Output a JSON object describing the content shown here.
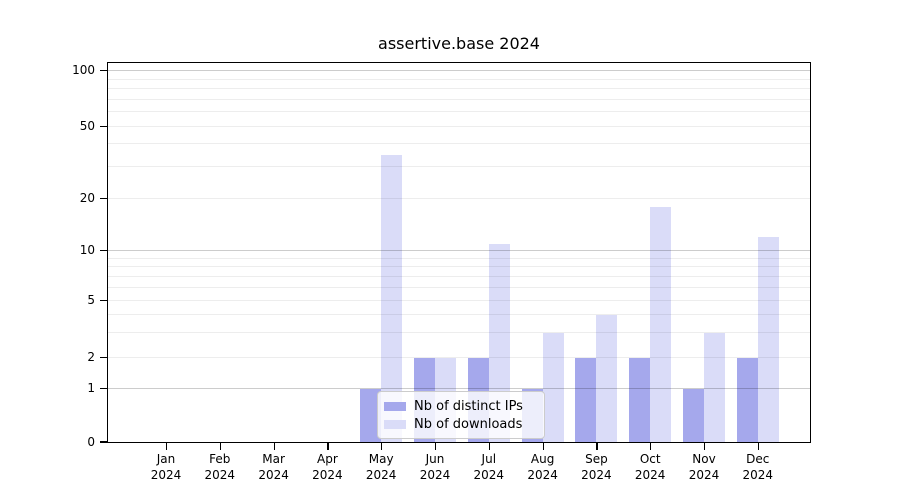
{
  "title": "assertive.base 2024",
  "chart_data": {
    "type": "bar",
    "title": "assertive.base 2024",
    "categories": [
      "Jan\n2024",
      "Feb\n2024",
      "Mar\n2024",
      "Apr\n2024",
      "May\n2024",
      "Jun\n2024",
      "Jul\n2024",
      "Aug\n2024",
      "Sep\n2024",
      "Oct\n2024",
      "Nov\n2024",
      "Dec\n2024"
    ],
    "series": [
      {
        "name": "Nb of distinct IPs",
        "color": "#a5a8ec",
        "values": [
          0,
          0,
          0,
          0,
          1,
          2,
          2,
          1,
          2,
          2,
          1,
          2
        ]
      },
      {
        "name": "Nb of downloads",
        "color": "#dadcf8",
        "values": [
          0,
          0,
          0,
          0,
          35,
          2,
          11,
          3,
          4,
          18,
          3,
          12
        ]
      }
    ],
    "xlabel": "",
    "ylabel": "",
    "yscale": "log-with-zero",
    "ylim": [
      0,
      115
    ],
    "ytick_values": [
      100,
      50,
      20,
      10,
      5,
      2,
      1,
      0
    ],
    "ytick_labels": [
      "100",
      "50",
      "20",
      "10",
      "5",
      "2",
      "1",
      "0"
    ],
    "minor_grid_values": [
      2,
      3,
      4,
      5,
      6,
      7,
      8,
      9,
      20,
      30,
      40,
      50,
      60,
      70,
      80,
      90
    ],
    "major_grid_values": [
      1,
      10,
      100
    ],
    "grid": true,
    "legend": {
      "position": "lower center",
      "entries": [
        "Nb of distinct IPs",
        "Nb of downloads"
      ]
    }
  },
  "colors": {
    "series_ips": "#a5a8ec",
    "series_downloads": "#dadcf8",
    "major_grid": "#c9c9c9",
    "minor_grid": "#ececec",
    "axis": "#000000",
    "background": "#ffffff",
    "legend_border": "#cccccc"
  }
}
